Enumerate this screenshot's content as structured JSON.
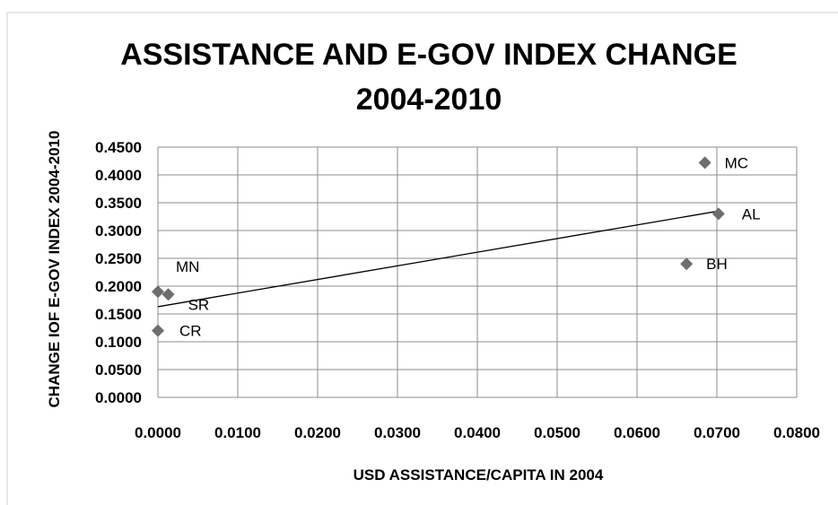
{
  "chart_data": {
    "type": "scatter",
    "title_lines": [
      "ASSISTANCE AND E-GOV INDEX CHANGE",
      "2004-2010"
    ],
    "xlabel": "USD ASSISTANCE/CAPITA IN 2004",
    "ylabel": "CHANGE IOF E-GOV INDEX 2004-2010",
    "xlim": [
      0,
      0.08
    ],
    "ylim": [
      0,
      0.45
    ],
    "x_ticks": [
      "0.0000",
      "0.0100",
      "0.0200",
      "0.0300",
      "0.0400",
      "0.0500",
      "0.0600",
      "0.0700",
      "0.0800"
    ],
    "y_ticks": [
      "0.0000",
      "0.0500",
      "0.1000",
      "0.1500",
      "0.2000",
      "0.2500",
      "0.3000",
      "0.3500",
      "0.4000",
      "0.4500"
    ],
    "grid": true,
    "marker_color": "#6d6d6d",
    "points": [
      {
        "label": "MN",
        "x": 0.0,
        "y": 0.19
      },
      {
        "label": "SR",
        "x": 0.0013,
        "y": 0.185
      },
      {
        "label": "CR",
        "x": 0.0,
        "y": 0.12
      },
      {
        "label": "BH",
        "x": 0.0662,
        "y": 0.24
      },
      {
        "label": "MC",
        "x": 0.0685,
        "y": 0.422
      },
      {
        "label": "AL",
        "x": 0.0702,
        "y": 0.33
      }
    ],
    "trendline": {
      "x": [
        0.0,
        0.0702
      ],
      "y": [
        0.163,
        0.335
      ]
    }
  }
}
